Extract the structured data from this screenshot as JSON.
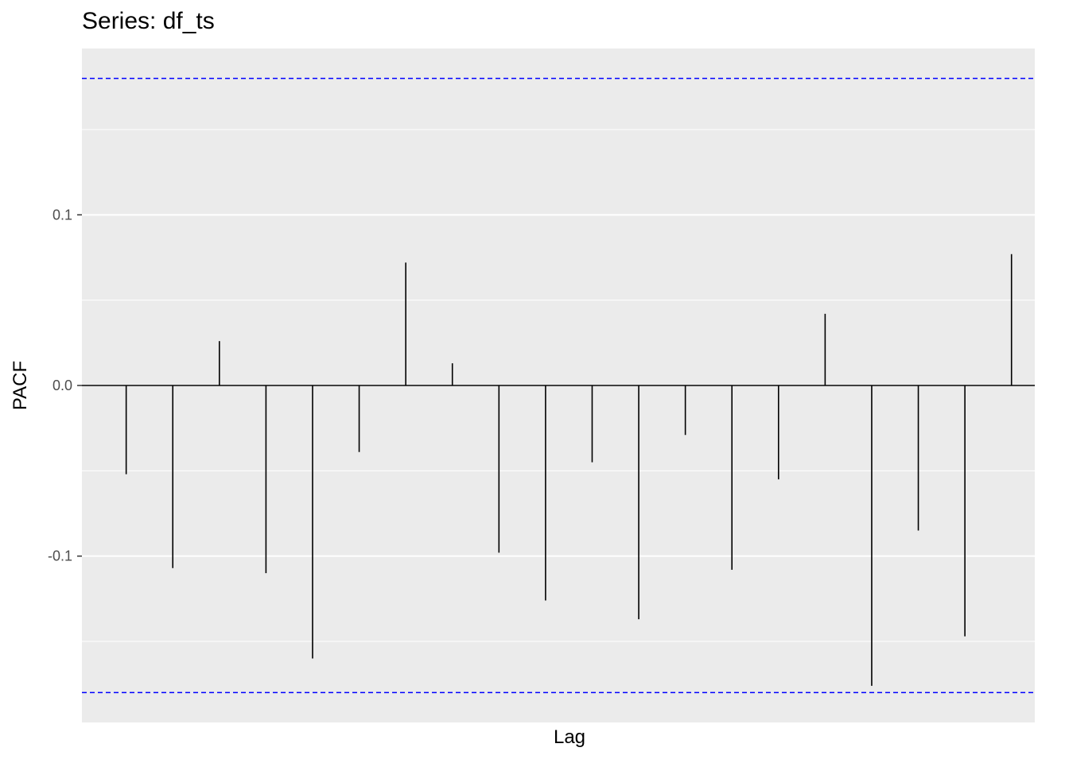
{
  "chart_data": {
    "type": "bar",
    "title": "Series: df_ts",
    "xlabel": "Lag",
    "ylabel": "PACF",
    "ylim": [
      -0.1975,
      0.1975
    ],
    "yticks": [
      {
        "value": 0.1,
        "label": "0.1"
      },
      {
        "value": 0.0,
        "label": "0.0"
      },
      {
        "value": -0.1,
        "label": "-0.1"
      }
    ],
    "lags": [
      1,
      2,
      3,
      4,
      5,
      6,
      7,
      8,
      9,
      10,
      11,
      12,
      13,
      14,
      15,
      16,
      17,
      18,
      19,
      20
    ],
    "values": [
      -0.052,
      -0.107,
      0.026,
      -0.11,
      -0.16,
      -0.039,
      0.072,
      0.013,
      -0.098,
      -0.126,
      -0.045,
      -0.137,
      -0.029,
      -0.108,
      -0.055,
      0.042,
      -0.176,
      -0.085,
      -0.147,
      0.077
    ],
    "confidence_limit": 0.18,
    "confidence_color": "#0000ff",
    "panel_color": "#ebebeb",
    "grid": true
  }
}
